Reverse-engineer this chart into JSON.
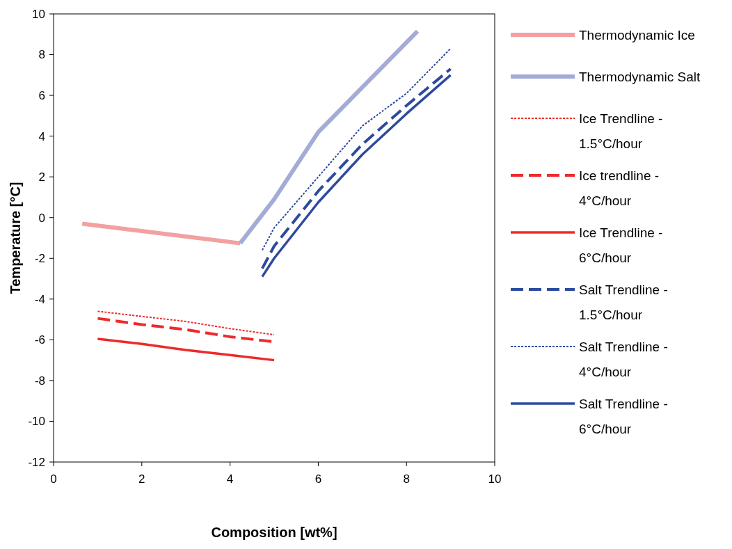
{
  "chart_data": {
    "type": "line",
    "xlabel": "Composition [wt%]",
    "ylabel": "Temperature [°C]",
    "xlim": [
      0,
      10
    ],
    "xticks": [
      0,
      2,
      4,
      6,
      8,
      10
    ],
    "ylim": [
      -12,
      10
    ],
    "yticks": [
      -12,
      -10,
      -8,
      -6,
      -4,
      -2,
      0,
      2,
      4,
      6,
      8,
      10
    ],
    "grid": false,
    "legend": "right",
    "marker": "none",
    "series": [
      {
        "name": "Thermodynamic Ice",
        "color": "#f2a0a0",
        "line_style": "solid",
        "x": [
          0.65,
          4.23
        ],
        "values": [
          -0.3,
          -1.26
        ]
      },
      {
        "name": "Thermodynamic Salt",
        "color": "#a3acd6",
        "line_style": "solid",
        "x": [
          4.23,
          5,
          6,
          7,
          8.25
        ],
        "values": [
          -1.26,
          0.9,
          4.2,
          6.4,
          9.15
        ]
      },
      {
        "name": "Ice Trendline - 1.5°C/hour",
        "color": "#ee2a2a",
        "line_style": "dotted",
        "x": [
          1,
          2,
          3,
          4,
          5
        ],
        "values": [
          -4.6,
          -4.85,
          -5.1,
          -5.45,
          -5.75
        ]
      },
      {
        "name": "Ice trendline - 4°C/hour",
        "color": "#ee2a2a",
        "line_style": "dashed",
        "x": [
          1,
          2,
          3,
          4,
          5
        ],
        "values": [
          -4.95,
          -5.25,
          -5.5,
          -5.85,
          -6.1
        ]
      },
      {
        "name": "Ice Trendline - 6°C/hour",
        "color": "#ee2a2a",
        "line_style": "solid",
        "x": [
          1,
          2,
          3,
          4,
          5
        ],
        "values": [
          -5.95,
          -6.2,
          -6.5,
          -6.75,
          -7.0
        ]
      },
      {
        "name": "Salt Trendline - 1.5°C/hour",
        "color": "#2e4a9e",
        "line_style": "dashed",
        "x": [
          4.73,
          5,
          6,
          7,
          8,
          9
        ],
        "values": [
          -2.5,
          -1.4,
          1.3,
          3.6,
          5.5,
          7.3
        ]
      },
      {
        "name": "Salt Trendline - 4°C/hour",
        "color": "#2e4a9e",
        "line_style": "dotted",
        "x": [
          4.73,
          5,
          6,
          7,
          8,
          9
        ],
        "values": [
          -1.6,
          -0.5,
          2.0,
          4.5,
          6.1,
          8.3
        ]
      },
      {
        "name": "Salt Trendline - 6°C/hour",
        "color": "#2e4a9e",
        "line_style": "solid",
        "x": [
          4.73,
          5,
          6,
          7,
          8,
          9
        ],
        "values": [
          -2.9,
          -2.0,
          0.75,
          3.1,
          5.1,
          7.0
        ]
      }
    ]
  }
}
